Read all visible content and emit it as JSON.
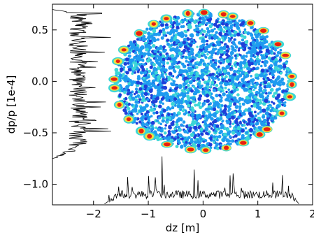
{
  "chart_data": {
    "type": "scatter",
    "title": "",
    "xlabel": "dz [m]",
    "ylabel": "dp/p [1e-4]",
    "xlim": [
      -2.75,
      2.0
    ],
    "ylim": [
      -1.2,
      0.75
    ],
    "xticks": [
      -2,
      -1,
      0,
      1,
      2
    ],
    "xtick_labels": [
      "−2",
      "−1",
      "0",
      "1",
      "2"
    ],
    "yticks": [
      -1.0,
      -0.5,
      0.0,
      0.5
    ],
    "ytick_labels": [
      "−1.0",
      "−0.5",
      "0.0",
      "0.5"
    ],
    "grid": false,
    "legend": "none",
    "colormap": "jet (point density)",
    "distribution": {
      "center_dz": 0.0,
      "center_dpp": 0.0,
      "dz_min": -1.65,
      "dz_max": 1.7,
      "dpp_min": -0.71,
      "dpp_max": 0.67
    },
    "projections": {
      "dz_profile": {
        "baseline_dpp": -1.19,
        "support": [
          -1.8,
          1.75
        ],
        "tallest_peak_dz": -0.75,
        "tallest_peak_dpp": -0.73
      },
      "dpp_profile": {
        "baseline_dz": -2.75,
        "support": [
          -0.75,
          0.7
        ],
        "tallest_peak_dpp": 0.66,
        "tallest_peak_dz": -1.85
      }
    },
    "colors": {
      "low_density": "#1f3fd8",
      "mid_density": "#1e9bf0",
      "mid_high_density": "#3cd6d6",
      "high_density": "#f0e040",
      "peak_density": "#e82010",
      "projection_line": "#000000"
    }
  }
}
